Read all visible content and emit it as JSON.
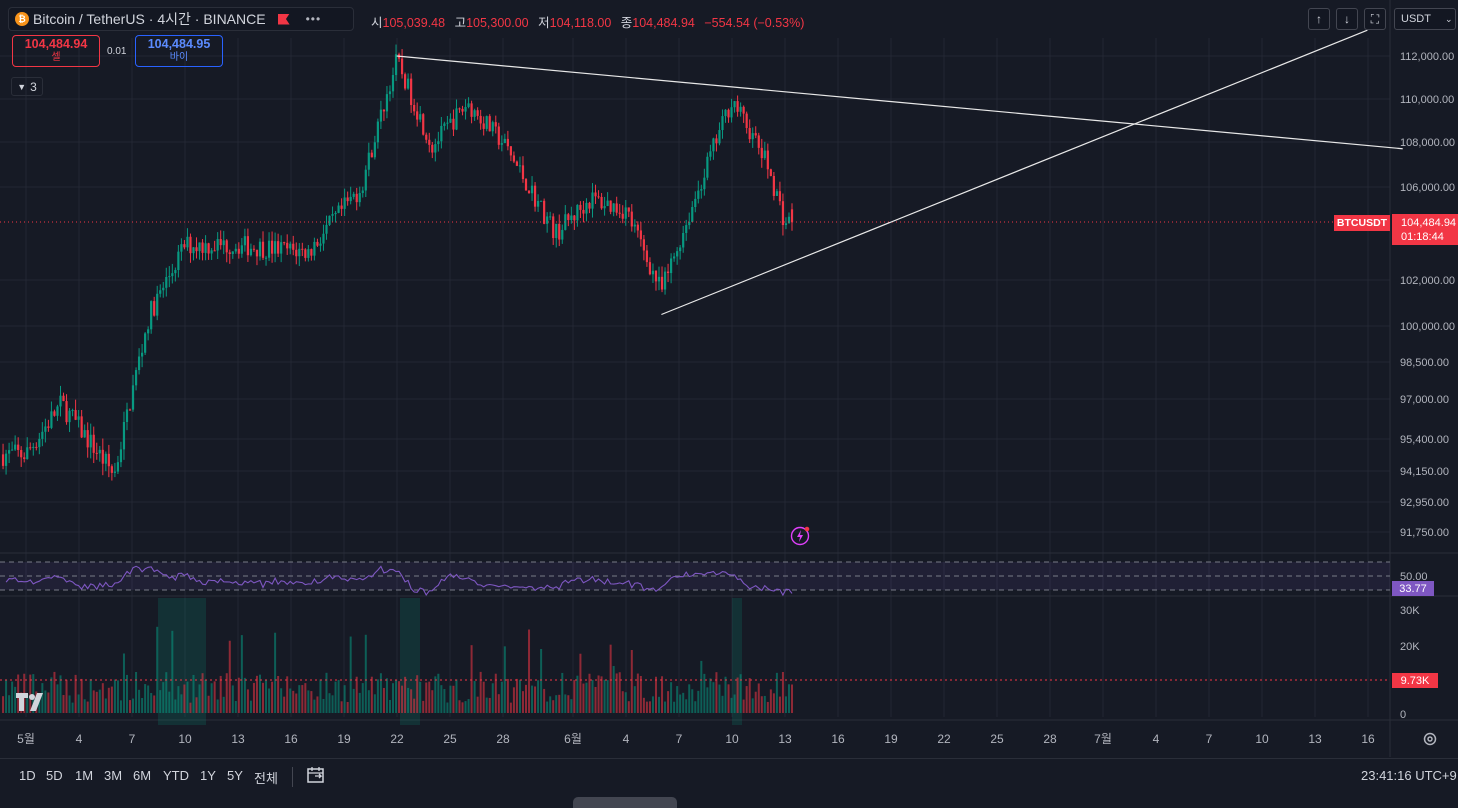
{
  "header": {
    "coin_icon": "bitcoin-coin-icon",
    "symbol": "Bitcoin / TetherUS",
    "interval_exchange": "· 4시간 · BINANCE",
    "flag_icon": "flag-icon",
    "more_icon": "ellipsis-icon"
  },
  "ohlc": {
    "open_label": "시",
    "open": "105,039.48",
    "high_label": "고",
    "high": "105,300.00",
    "low_label": "저",
    "low": "104,118.00",
    "close_label": "종",
    "close": "104,484.94",
    "change": "−554.54 (−0.53%)"
  },
  "trade": {
    "sell_price": "104,484.94",
    "sell_label": "셀",
    "spread": "0.01",
    "buy_price": "104,484.95",
    "buy_label": "바이"
  },
  "indicators_collapse": {
    "count": "3"
  },
  "toolbar_right": {
    "up_icon": "arrow-up-icon",
    "down_icon": "arrow-down-icon",
    "fullscreen_icon": "fullscreen-icon",
    "currency": "USDT"
  },
  "price_axis": {
    "labels": [
      "112,000.00",
      "110,000.00",
      "108,000.00",
      "106,000.00",
      "102,000.00",
      "100,000.00",
      "98,500.00",
      "97,000.00",
      "95,400.00",
      "94,150.00",
      "92,950.00",
      "91,750.00"
    ],
    "current_price": "104,484.94",
    "countdown": "01:18:44",
    "symbol_tag": "BTCUSDT"
  },
  "rsi": {
    "level_label": "50.00",
    "value": "33.77"
  },
  "volume": {
    "labels": [
      "30K",
      "20K",
      "0"
    ],
    "current": "9.73K"
  },
  "time_axis": {
    "labels": [
      "5월",
      "4",
      "7",
      "10",
      "13",
      "16",
      "19",
      "22",
      "25",
      "28",
      "6월",
      "4",
      "7",
      "10",
      "13",
      "16",
      "19",
      "22",
      "25",
      "28",
      "7월",
      "4",
      "7",
      "10",
      "13",
      "16"
    ]
  },
  "ranges": [
    "1D",
    "5D",
    "1M",
    "3M",
    "6M",
    "YTD",
    "1Y",
    "5Y",
    "전체"
  ],
  "clock": "23:41:16 UTC+9",
  "colors": {
    "up": "#089981",
    "down": "#f23645",
    "rsi": "#7e57c2",
    "bg": "#161a25",
    "grid": "#232734"
  },
  "chart_data": {
    "type": "candlestick",
    "symbol": "BTCUSDT",
    "interval": "4h",
    "exchange": "BINANCE",
    "ohlc_last": {
      "open": 105039.48,
      "high": 105300.0,
      "low": 104118.0,
      "close": 104484.94
    },
    "key_points": [
      {
        "date": "2025-05-01",
        "close": 94800
      },
      {
        "date": "2025-05-03",
        "close": 96800
      },
      {
        "date": "2025-05-06",
        "close": 94000
      },
      {
        "date": "2025-05-08",
        "close": 100500
      },
      {
        "date": "2025-05-10",
        "close": 103500
      },
      {
        "date": "2025-05-13",
        "close": 103500
      },
      {
        "date": "2025-05-17",
        "close": 103200
      },
      {
        "date": "2025-05-20",
        "close": 106000
      },
      {
        "date": "2025-05-22",
        "close": 111800
      },
      {
        "date": "2025-05-24",
        "close": 107800
      },
      {
        "date": "2025-05-26",
        "close": 109800
      },
      {
        "date": "2025-05-28",
        "close": 108000
      },
      {
        "date": "2025-05-31",
        "close": 104000
      },
      {
        "date": "2025-06-02",
        "close": 105500
      },
      {
        "date": "2025-06-04",
        "close": 105000
      },
      {
        "date": "2025-06-06",
        "close": 101500
      },
      {
        "date": "2025-06-08",
        "close": 105700
      },
      {
        "date": "2025-06-10",
        "close": 110000
      },
      {
        "date": "2025-06-12",
        "close": 107000
      },
      {
        "date": "2025-06-13",
        "close": 104485
      }
    ],
    "trendlines": [
      {
        "from": {
          "date": "2025-05-22",
          "price": 112000
        },
        "to": {
          "date": "2025-07-18",
          "price": 107700
        }
      },
      {
        "from": {
          "date": "2025-06-06",
          "price": 100500
        },
        "to": {
          "date": "2025-07-16",
          "price": 113200
        }
      }
    ],
    "rsi_last": 33.77,
    "volume_last": 9730
  }
}
